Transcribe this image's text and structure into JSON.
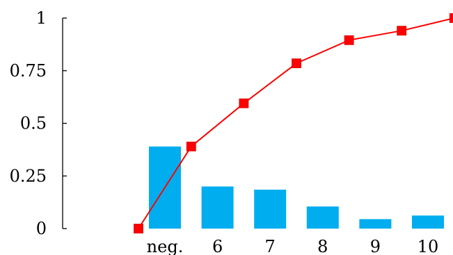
{
  "chart_data": {
    "type": "bar",
    "categories": [
      "neg.",
      "6",
      "7",
      "8",
      "9",
      "10"
    ],
    "bar_values": [
      0.39,
      0.2,
      0.185,
      0.105,
      0.045,
      0.062
    ],
    "line_values": [
      0,
      0.39,
      0.595,
      0.785,
      0.895,
      0.94,
      1.0
    ],
    "ylim": [
      0,
      1
    ],
    "yticks": [
      "0",
      "0.25",
      "0.5",
      "0.75",
      "1"
    ],
    "title": "",
    "xlabel": "",
    "ylabel": "",
    "grid": false,
    "colors": {
      "bars": "#00aeef",
      "line": "#ff0000"
    }
  }
}
